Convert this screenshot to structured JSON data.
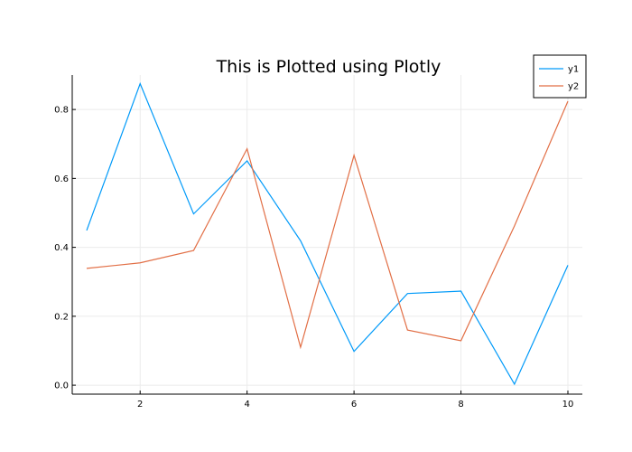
{
  "chart_data": {
    "type": "line",
    "title": "This is Plotted using Plotly",
    "xlabel": "",
    "ylabel": "",
    "x": [
      1,
      2,
      3,
      4,
      5,
      6,
      7,
      8,
      9,
      10
    ],
    "xlim": [
      0.73,
      10.27
    ],
    "ylim": [
      -0.026,
      0.9
    ],
    "xticks": [
      2,
      4,
      6,
      8,
      10
    ],
    "yticks": [
      0.0,
      0.2,
      0.4,
      0.6,
      0.8
    ],
    "xtick_labels": [
      "2",
      "4",
      "6",
      "8",
      "10"
    ],
    "ytick_labels": [
      "0.0",
      "0.2",
      "0.4",
      "0.6",
      "0.8"
    ],
    "grid": true,
    "legend_position": "top-right",
    "series": [
      {
        "name": "y1",
        "color": "#009af9",
        "values": [
          0.449,
          0.875,
          0.497,
          0.651,
          0.419,
          0.098,
          0.266,
          0.273,
          0.003,
          0.348
        ]
      },
      {
        "name": "y2",
        "color": "#e26f46",
        "values": [
          0.339,
          0.355,
          0.391,
          0.686,
          0.11,
          0.667,
          0.16,
          0.129,
          0.462,
          0.824
        ]
      }
    ]
  }
}
